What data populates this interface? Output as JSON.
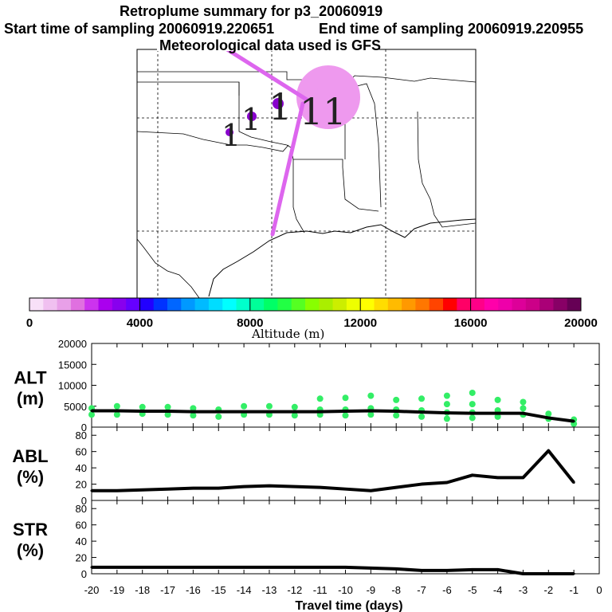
{
  "title": {
    "line1": "Retroplume summary for p3_20060919",
    "start": "Start time of sampling 20060919.220651",
    "end": "End time of sampling 20060919.220955",
    "met": "Meteorological data used is GFS"
  },
  "colors": {
    "trajectory": "#dd66ee",
    "centroid": "#8800cc",
    "cluster": "#ee99ee",
    "scatter": "#33ee66",
    "line": "#000000"
  },
  "map": {
    "cluster_labels": [
      "1",
      "1",
      "1",
      "11"
    ]
  },
  "colorbar": {
    "label": "Altitude (m)",
    "ticks": [
      "0",
      "4000",
      "8000",
      "12000",
      "16000",
      "20000"
    ],
    "colors": [
      "#f8e0f8",
      "#f0c0f0",
      "#e8a0e8",
      "#e070e0",
      "#cc33ee",
      "#aa00ee",
      "#8800ee",
      "#6600ff",
      "#2200ff",
      "#0033ff",
      "#0066ff",
      "#0099ff",
      "#00bbff",
      "#00ddff",
      "#00ffff",
      "#00ffcc",
      "#00ff99",
      "#00ff66",
      "#22ff44",
      "#55ff22",
      "#88ff00",
      "#aaee00",
      "#ccee00",
      "#eeff00",
      "#ffff00",
      "#ffdd00",
      "#ffbb00",
      "#ff9900",
      "#ff7700",
      "#ff4400",
      "#ff0000",
      "#ff0066",
      "#ff0088",
      "#ff00aa",
      "#ee00aa",
      "#dd0099",
      "#cc0088",
      "#aa0077",
      "#880066",
      "#660055"
    ]
  },
  "chart_data": [
    {
      "type": "line",
      "panel": "ALT",
      "ylabel_line1": "ALT",
      "ylabel_line2": "(m)",
      "ylim": [
        0,
        20000
      ],
      "yticks": [
        "0",
        "5000",
        "10000",
        "15000",
        "20000"
      ],
      "x": [
        -20,
        -19,
        -18,
        -17,
        -16,
        -15,
        -14,
        -13,
        -12,
        -11,
        -10,
        -9,
        -8,
        -7,
        -6,
        -5,
        -4,
        -3,
        -2,
        -1
      ],
      "values": [
        3900,
        3900,
        3800,
        3800,
        3700,
        3700,
        3700,
        3700,
        3700,
        3700,
        3800,
        3900,
        3800,
        3600,
        3400,
        3300,
        3300,
        3300,
        2200,
        1400
      ],
      "scatter": [
        {
          "x": -20,
          "y": 3000
        },
        {
          "x": -20,
          "y": 4500
        },
        {
          "x": -19,
          "y": 3000
        },
        {
          "x": -19,
          "y": 5000
        },
        {
          "x": -18,
          "y": 3200
        },
        {
          "x": -18,
          "y": 4800
        },
        {
          "x": -17,
          "y": 3000
        },
        {
          "x": -17,
          "y": 4800
        },
        {
          "x": -16,
          "y": 2800
        },
        {
          "x": -16,
          "y": 4500
        },
        {
          "x": -15,
          "y": 2500
        },
        {
          "x": -15,
          "y": 4200
        },
        {
          "x": -14,
          "y": 3000
        },
        {
          "x": -14,
          "y": 5000
        },
        {
          "x": -13,
          "y": 3000
        },
        {
          "x": -13,
          "y": 5000
        },
        {
          "x": -12,
          "y": 2800
        },
        {
          "x": -12,
          "y": 4800
        },
        {
          "x": -11,
          "y": 3000
        },
        {
          "x": -11,
          "y": 4200
        },
        {
          "x": -11,
          "y": 6800
        },
        {
          "x": -10,
          "y": 2800
        },
        {
          "x": -10,
          "y": 4200
        },
        {
          "x": -10,
          "y": 7000
        },
        {
          "x": -9,
          "y": 3000
        },
        {
          "x": -9,
          "y": 4500
        },
        {
          "x": -9,
          "y": 7500
        },
        {
          "x": -8,
          "y": 2800
        },
        {
          "x": -8,
          "y": 4200
        },
        {
          "x": -8,
          "y": 6500
        },
        {
          "x": -7,
          "y": 2500
        },
        {
          "x": -7,
          "y": 4000
        },
        {
          "x": -7,
          "y": 6800
        },
        {
          "x": -6,
          "y": 2000
        },
        {
          "x": -6,
          "y": 3500
        },
        {
          "x": -6,
          "y": 5500
        },
        {
          "x": -6,
          "y": 7500
        },
        {
          "x": -5,
          "y": 2200
        },
        {
          "x": -5,
          "y": 3500
        },
        {
          "x": -5,
          "y": 5500
        },
        {
          "x": -5,
          "y": 8200
        },
        {
          "x": -4,
          "y": 2500
        },
        {
          "x": -4,
          "y": 4000
        },
        {
          "x": -4,
          "y": 6500
        },
        {
          "x": -3,
          "y": 3000
        },
        {
          "x": -3,
          "y": 4500
        },
        {
          "x": -3,
          "y": 6000
        },
        {
          "x": -2,
          "y": 2000
        },
        {
          "x": -2,
          "y": 3200
        },
        {
          "x": -1,
          "y": 800
        },
        {
          "x": -1,
          "y": 1800
        }
      ]
    },
    {
      "type": "line",
      "panel": "ABL",
      "ylabel_line1": "ABL",
      "ylabel_line2": "(%)",
      "ylim": [
        0,
        90
      ],
      "yticks": [
        "0",
        "20",
        "40",
        "60",
        "80"
      ],
      "x": [
        -20,
        -19,
        -18,
        -17,
        -16,
        -15,
        -14,
        -13,
        -12,
        -11,
        -10,
        -9,
        -8,
        -7,
        -6,
        -5,
        -4,
        -3,
        -2,
        -1
      ],
      "values": [
        12,
        12,
        13,
        14,
        15,
        15,
        17,
        18,
        17,
        16,
        14,
        12,
        16,
        20,
        22,
        31,
        28,
        28,
        61,
        22
      ]
    },
    {
      "type": "line",
      "panel": "STR",
      "ylabel_line1": "STR",
      "ylabel_line2": "(%)",
      "ylim": [
        0,
        90
      ],
      "yticks": [
        "0",
        "20",
        "40",
        "60",
        "80"
      ],
      "x": [
        -20,
        -19,
        -18,
        -17,
        -16,
        -15,
        -14,
        -13,
        -12,
        -11,
        -10,
        -9,
        -8,
        -7,
        -6,
        -5,
        -4,
        -3,
        -2,
        -1
      ],
      "values": [
        8,
        8,
        8,
        8,
        8,
        8,
        8,
        8,
        8,
        8,
        8,
        7,
        6,
        4,
        4,
        5,
        5,
        0,
        0,
        0
      ]
    }
  ],
  "xaxis": {
    "label": "Travel time (days)",
    "ticks": [
      "-20",
      "-19",
      "-18",
      "-17",
      "-16",
      "-15",
      "-14",
      "-13",
      "-12",
      "-11",
      "-10",
      "-9",
      "-8",
      "-7",
      "-6",
      "-5",
      "-4",
      "-3",
      "-2",
      "-1",
      "0"
    ]
  }
}
